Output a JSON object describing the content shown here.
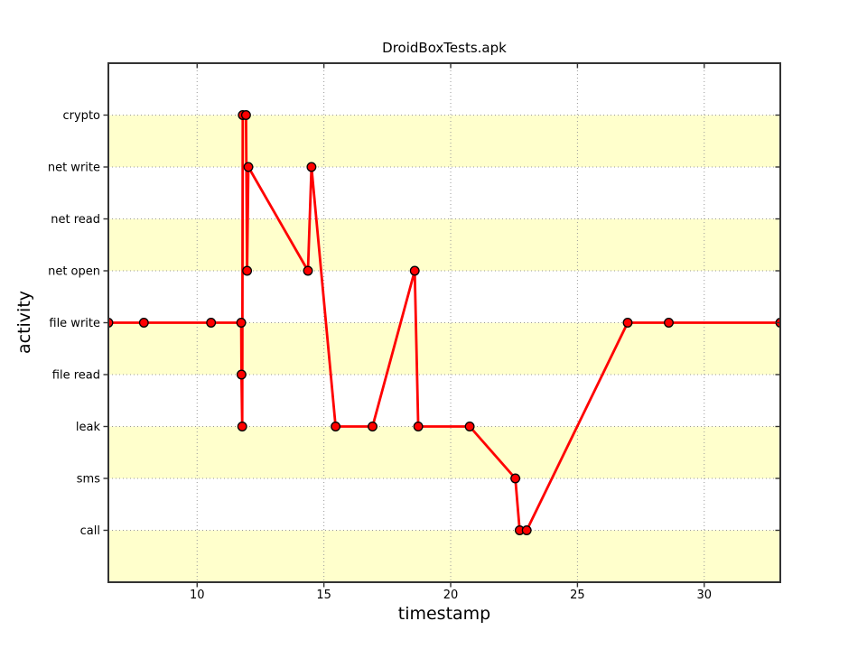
{
  "window": {
    "background": "#ffffff"
  },
  "chart_data": {
    "type": "line",
    "title": "DroidBoxTests.apk",
    "xlabel": "timestamp",
    "ylabel": "activity",
    "categories": [
      "call",
      "sms",
      "leak",
      "file read",
      "file write",
      "net open",
      "net read",
      "net write",
      "crypto"
    ],
    "x_ticks": [
      10,
      15,
      20,
      25,
      30
    ],
    "xlim": [
      6.5,
      33.0
    ],
    "ylim": [
      0,
      10
    ],
    "grid": "dotted",
    "legend": "none",
    "colors": {
      "line": "#ff0000",
      "marker_fill": "#ff0000",
      "marker_edge": "#000000",
      "band": "#ffffcc",
      "grid": "#999999",
      "spine": "#333333",
      "text": "#000000"
    },
    "band_intervals": [
      [
        0,
        1
      ],
      [
        2,
        3
      ],
      [
        4,
        5
      ],
      [
        6,
        7
      ],
      [
        8,
        9
      ]
    ],
    "points": [
      {
        "x": 6.5,
        "activity": "file write"
      },
      {
        "x": 7.9,
        "activity": "file write"
      },
      {
        "x": 10.55,
        "activity": "file write"
      },
      {
        "x": 11.74,
        "activity": "file write"
      },
      {
        "x": 11.75,
        "activity": "file read"
      },
      {
        "x": 11.78,
        "activity": "leak"
      },
      {
        "x": 11.8,
        "activity": "crypto"
      },
      {
        "x": 11.93,
        "activity": "crypto"
      },
      {
        "x": 11.97,
        "activity": "net open"
      },
      {
        "x": 12.02,
        "activity": "net write"
      },
      {
        "x": 14.37,
        "activity": "net open"
      },
      {
        "x": 14.51,
        "activity": "net write"
      },
      {
        "x": 15.46,
        "activity": "leak"
      },
      {
        "x": 16.92,
        "activity": "leak"
      },
      {
        "x": 18.58,
        "activity": "net open"
      },
      {
        "x": 18.72,
        "activity": "leak"
      },
      {
        "x": 20.75,
        "activity": "leak"
      },
      {
        "x": 22.55,
        "activity": "sms"
      },
      {
        "x": 22.72,
        "activity": "call"
      },
      {
        "x": 23.0,
        "activity": "call"
      },
      {
        "x": 26.98,
        "activity": "file write"
      },
      {
        "x": 28.6,
        "activity": "file write"
      },
      {
        "x": 33.0,
        "activity": "file write"
      }
    ]
  }
}
